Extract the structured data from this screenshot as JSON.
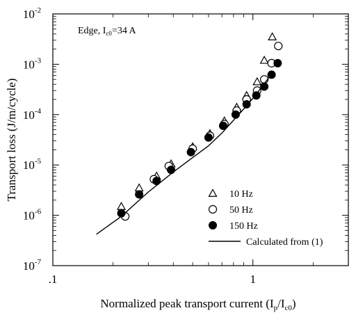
{
  "chart_data": {
    "type": "scatter",
    "annotation": {
      "prefix": "Edge, I",
      "sub": "c0",
      "suffix": "=34 A"
    },
    "xlabel": {
      "prefix": "Normalized peak transport current (I",
      "sub1": "p",
      "mid": "/I",
      "sub2": "c0",
      "suffix": ")"
    },
    "ylabel": "Transport loss (J/m/cycle)",
    "x_scale": "log",
    "y_scale": "log",
    "xlim": [
      0.1,
      3.0
    ],
    "ylim": [
      1e-07,
      0.01
    ],
    "x_ticks": [
      {
        "value": 0.1,
        "label": ".1"
      },
      {
        "value": 1,
        "label": "1"
      }
    ],
    "y_ticks": [
      {
        "value": 1e-07,
        "base": "10",
        "exp": "-7"
      },
      {
        "value": 1e-06,
        "base": "10",
        "exp": "-6"
      },
      {
        "value": 1e-05,
        "base": "10",
        "exp": "-5"
      },
      {
        "value": 0.0001,
        "base": "10",
        "exp": "-4"
      },
      {
        "value": 0.001,
        "base": "10",
        "exp": "-3"
      },
      {
        "value": 0.01,
        "base": "10",
        "exp": "-2"
      }
    ],
    "legend_position": "bottom-right",
    "series": [
      {
        "name": "10 Hz",
        "marker": "triangle-open",
        "x": [
          0.22,
          0.27,
          0.33,
          0.39,
          0.5,
          0.61,
          0.72,
          0.83,
          0.93,
          1.05,
          1.14,
          1.25
        ],
        "y": [
          1.5e-06,
          3.5e-06,
          6e-06,
          1.05e-05,
          2.3e-05,
          4.2e-05,
          7.5e-05,
          0.00014,
          0.00024,
          0.00045,
          0.0012,
          0.0035
        ]
      },
      {
        "name": "50 Hz",
        "marker": "circle-open",
        "x": [
          0.23,
          0.32,
          0.38,
          0.5,
          0.61,
          0.72,
          0.83,
          0.93,
          1.05,
          1.14,
          1.24,
          1.34
        ],
        "y": [
          9.5e-07,
          5.2e-06,
          9.5e-06,
          2.1e-05,
          3.8e-05,
          6.5e-05,
          0.00012,
          0.0002,
          0.0003,
          0.0005,
          0.00105,
          0.0023
        ]
      },
      {
        "name": "150 Hz",
        "marker": "circle-filled",
        "x": [
          0.22,
          0.27,
          0.33,
          0.39,
          0.49,
          0.6,
          0.71,
          0.82,
          0.93,
          1.04,
          1.14,
          1.24,
          1.33
        ],
        "y": [
          1.1e-06,
          2.6e-06,
          4.8e-06,
          8e-06,
          1.8e-05,
          3.5e-05,
          6e-05,
          0.0001,
          0.00016,
          0.00024,
          0.00036,
          0.00062,
          0.00105
        ]
      },
      {
        "name": "Calculated from (1)",
        "marker": "line",
        "x": [
          0.165,
          0.22,
          0.3,
          0.4,
          0.5,
          0.6,
          0.7,
          0.8,
          0.9,
          1.0,
          1.1,
          1.2
        ],
        "y": [
          4.2e-07,
          9.5e-07,
          2.9e-06,
          7.2e-06,
          1.4e-05,
          2.4e-05,
          4.3e-05,
          7.7e-05,
          0.00013,
          0.00021,
          0.00034,
          0.00054
        ]
      }
    ]
  }
}
